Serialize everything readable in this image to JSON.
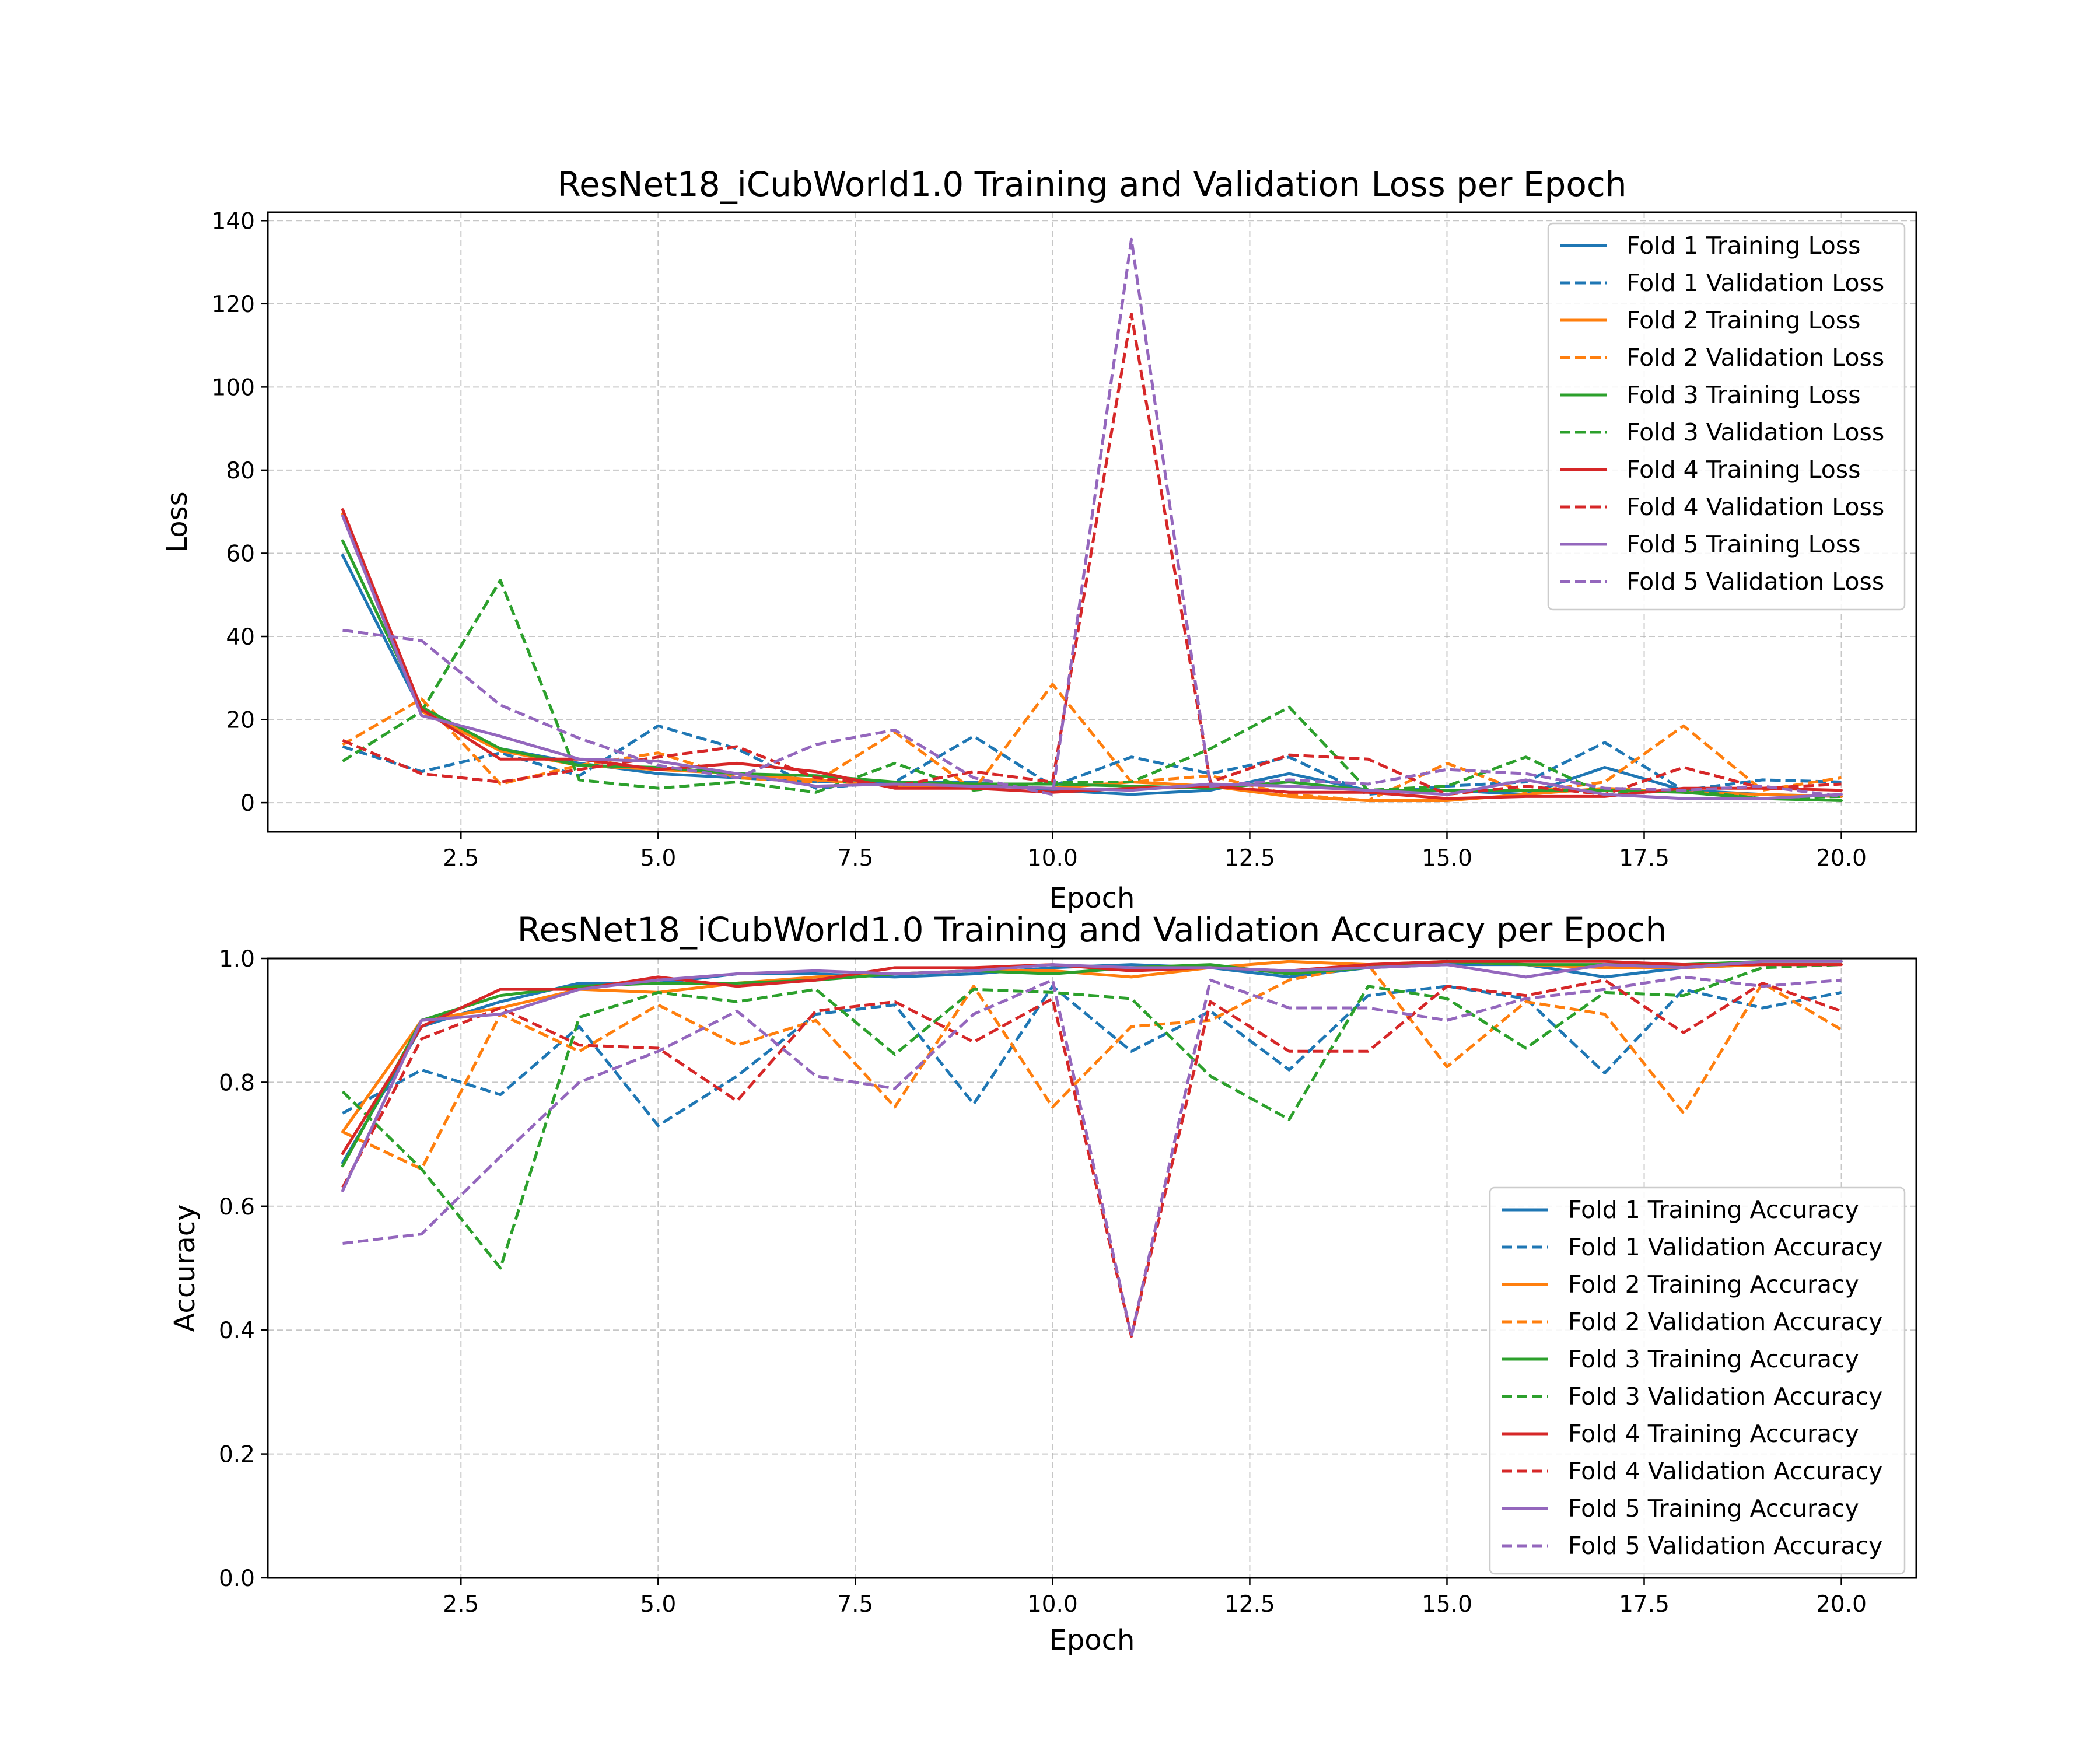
{
  "chart_data": [
    {
      "type": "line",
      "title": "ResNet18_iCubWorld1.0 Training and Validation Loss per Epoch",
      "xlabel": "Epoch",
      "ylabel": "Loss",
      "xlim": [
        0.05,
        20.95
      ],
      "ylim": [
        -7,
        142
      ],
      "xticks": [
        2.5,
        5.0,
        7.5,
        10.0,
        12.5,
        15.0,
        17.5,
        20.0
      ],
      "xtick_labels": [
        "2.5",
        "5.0",
        "7.5",
        "10.0",
        "12.5",
        "15.0",
        "17.5",
        "20.0"
      ],
      "yticks": [
        0,
        20,
        40,
        60,
        80,
        100,
        120,
        140
      ],
      "ytick_labels": [
        "0",
        "20",
        "40",
        "60",
        "80",
        "100",
        "120",
        "140"
      ],
      "grid": true,
      "legend_position": "upper right",
      "x": [
        1,
        2,
        3,
        4,
        5,
        6,
        7,
        8,
        9,
        10,
        11,
        12,
        13,
        14,
        15,
        16,
        17,
        18,
        19,
        20
      ],
      "series": [
        {
          "name": "Fold 1 Training Loss",
          "color": "#1f77b4",
          "style": "solid",
          "values": [
            59.5,
            22,
            13,
            9.5,
            7,
            6,
            5,
            5,
            5,
            3,
            2,
            3,
            7,
            3,
            3,
            2,
            8.5,
            3,
            2,
            1.5
          ]
        },
        {
          "name": "Fold 1 Validation Loss",
          "color": "#1f77b4",
          "style": "dashed",
          "values": [
            13.5,
            7.5,
            12,
            6.5,
            18.5,
            13,
            3.5,
            5,
            16,
            4,
            11,
            7,
            11,
            2,
            4,
            5,
            14.5,
            3,
            5.5,
            5
          ]
        },
        {
          "name": "Fold 2 Training Loss",
          "color": "#ff7f0e",
          "style": "solid",
          "values": [
            69.5,
            22,
            12.5,
            9,
            8,
            7,
            5.5,
            4,
            4,
            3.5,
            5,
            4,
            1.5,
            0.5,
            0.5,
            2,
            3.5,
            2.5,
            2,
            1.5
          ]
        },
        {
          "name": "Fold 2 Validation Loss",
          "color": "#ff7f0e",
          "style": "dashed",
          "values": [
            14,
            25,
            4.5,
            9,
            12,
            6,
            5,
            17,
            3,
            28.5,
            5,
            6.5,
            2,
            0.5,
            9.5,
            2.5,
            5,
            18.5,
            3,
            6
          ]
        },
        {
          "name": "Fold 3 Training Loss",
          "color": "#2ca02c",
          "style": "solid",
          "values": [
            63,
            23,
            13,
            9,
            8.5,
            7,
            6.5,
            5,
            4.5,
            4.5,
            4,
            3.5,
            5,
            3,
            3,
            3,
            3,
            2.5,
            1,
            0.5
          ]
        },
        {
          "name": "Fold 3 Validation Loss",
          "color": "#2ca02c",
          "style": "dashed",
          "values": [
            10,
            22,
            53.5,
            5.5,
            3.5,
            5,
            2.5,
            9.5,
            3,
            5,
            5,
            13,
            23,
            3,
            4,
            11,
            2,
            3,
            1,
            1.5
          ]
        },
        {
          "name": "Fold 4 Training Loss",
          "color": "#d62728",
          "style": "solid",
          "values": [
            70.5,
            22.5,
            10.5,
            10.5,
            8,
            9.5,
            7.5,
            3.5,
            3.5,
            2.5,
            3.5,
            4,
            2.5,
            2.5,
            1,
            1.5,
            1.5,
            3.5,
            3.5,
            3
          ]
        },
        {
          "name": "Fold 4 Validation Loss",
          "color": "#d62728",
          "style": "dashed",
          "values": [
            15,
            7,
            5,
            8,
            11,
            13.5,
            6,
            4,
            7.5,
            5,
            117.5,
            5,
            11.5,
            10.5,
            2,
            4,
            2,
            8.5,
            3.5,
            4.5
          ]
        },
        {
          "name": "Fold 5 Training Loss",
          "color": "#9467bd",
          "style": "solid",
          "values": [
            69,
            21,
            16,
            10.5,
            10,
            7,
            4,
            4.5,
            4,
            3.5,
            3,
            4.5,
            4,
            3,
            2,
            5.5,
            2,
            1,
            1,
            2
          ]
        },
        {
          "name": "Fold 5 Validation Loss",
          "color": "#9467bd",
          "style": "dashed",
          "values": [
            41.5,
            39,
            23.5,
            15.5,
            9,
            6,
            14,
            17.5,
            6,
            2,
            135.5,
            4,
            5.5,
            4.5,
            8,
            7,
            3.5,
            3,
            4,
            1.5
          ]
        }
      ]
    },
    {
      "type": "line",
      "title": "ResNet18_iCubWorld1.0 Training and Validation Accuracy per Epoch",
      "xlabel": "Epoch",
      "ylabel": "Accuracy",
      "xlim": [
        0.05,
        20.95
      ],
      "ylim": [
        0.0,
        1.0
      ],
      "xticks": [
        2.5,
        5.0,
        7.5,
        10.0,
        12.5,
        15.0,
        17.5,
        20.0
      ],
      "xtick_labels": [
        "2.5",
        "5.0",
        "7.5",
        "10.0",
        "12.5",
        "15.0",
        "17.5",
        "20.0"
      ],
      "yticks": [
        0.0,
        0.2,
        0.4,
        0.6,
        0.8,
        1.0
      ],
      "ytick_labels": [
        "0.0",
        "0.2",
        "0.4",
        "0.6",
        "0.8",
        "1.0"
      ],
      "grid": true,
      "legend_position": "lower right",
      "x": [
        1,
        2,
        3,
        4,
        5,
        6,
        7,
        8,
        9,
        10,
        11,
        12,
        13,
        14,
        15,
        16,
        17,
        18,
        19,
        20
      ],
      "series": [
        {
          "name": "Fold 1 Training Accuracy",
          "color": "#1f77b4",
          "style": "solid",
          "values": [
            0.67,
            0.89,
            0.93,
            0.96,
            0.96,
            0.975,
            0.975,
            0.97,
            0.975,
            0.985,
            0.99,
            0.985,
            0.97,
            0.985,
            0.99,
            0.99,
            0.97,
            0.985,
            0.99,
            0.99
          ]
        },
        {
          "name": "Fold 1 Validation Accuracy",
          "color": "#1f77b4",
          "style": "dashed",
          "values": [
            0.75,
            0.82,
            0.78,
            0.89,
            0.73,
            0.81,
            0.91,
            0.925,
            0.765,
            0.955,
            0.85,
            0.915,
            0.82,
            0.94,
            0.955,
            0.935,
            0.815,
            0.95,
            0.92,
            0.945
          ]
        },
        {
          "name": "Fold 2 Training Accuracy",
          "color": "#ff7f0e",
          "style": "solid",
          "values": [
            0.72,
            0.9,
            0.92,
            0.95,
            0.945,
            0.96,
            0.97,
            0.975,
            0.98,
            0.98,
            0.97,
            0.985,
            0.995,
            0.99,
            0.995,
            0.99,
            0.985,
            0.985,
            0.99,
            0.99
          ]
        },
        {
          "name": "Fold 2 Validation Accuracy",
          "color": "#ff7f0e",
          "style": "dashed",
          "values": [
            0.72,
            0.66,
            0.91,
            0.85,
            0.925,
            0.86,
            0.9,
            0.76,
            0.955,
            0.76,
            0.89,
            0.9,
            0.965,
            0.99,
            0.825,
            0.93,
            0.91,
            0.75,
            0.96,
            0.885
          ]
        },
        {
          "name": "Fold 3 Training Accuracy",
          "color": "#2ca02c",
          "style": "solid",
          "values": [
            0.665,
            0.9,
            0.94,
            0.955,
            0.96,
            0.96,
            0.965,
            0.975,
            0.98,
            0.975,
            0.985,
            0.99,
            0.975,
            0.985,
            0.995,
            0.99,
            0.99,
            0.99,
            0.995,
            0.995
          ]
        },
        {
          "name": "Fold 3 Validation Accuracy",
          "color": "#2ca02c",
          "style": "dashed",
          "values": [
            0.785,
            0.66,
            0.5,
            0.905,
            0.945,
            0.93,
            0.95,
            0.845,
            0.95,
            0.945,
            0.935,
            0.81,
            0.74,
            0.955,
            0.935,
            0.855,
            0.945,
            0.94,
            0.985,
            0.99
          ]
        },
        {
          "name": "Fold 4 Training Accuracy",
          "color": "#d62728",
          "style": "solid",
          "values": [
            0.685,
            0.89,
            0.95,
            0.95,
            0.97,
            0.955,
            0.965,
            0.985,
            0.985,
            0.99,
            0.98,
            0.985,
            0.98,
            0.99,
            0.995,
            0.995,
            0.995,
            0.99,
            0.99,
            0.99
          ]
        },
        {
          "name": "Fold 4 Validation Accuracy",
          "color": "#d62728",
          "style": "dashed",
          "values": [
            0.63,
            0.87,
            0.92,
            0.86,
            0.855,
            0.77,
            0.915,
            0.93,
            0.865,
            0.935,
            0.39,
            0.93,
            0.85,
            0.85,
            0.955,
            0.94,
            0.965,
            0.88,
            0.96,
            0.915
          ]
        },
        {
          "name": "Fold 5 Training Accuracy",
          "color": "#9467bd",
          "style": "solid",
          "values": [
            0.625,
            0.9,
            0.91,
            0.95,
            0.965,
            0.975,
            0.98,
            0.975,
            0.98,
            0.99,
            0.985,
            0.985,
            0.98,
            0.985,
            0.99,
            0.97,
            0.99,
            0.985,
            0.995,
            0.995
          ]
        },
        {
          "name": "Fold 5 Validation Accuracy",
          "color": "#9467bd",
          "style": "dashed",
          "values": [
            0.54,
            0.555,
            0.68,
            0.8,
            0.85,
            0.915,
            0.81,
            0.79,
            0.91,
            0.965,
            0.39,
            0.965,
            0.92,
            0.92,
            0.9,
            0.935,
            0.95,
            0.97,
            0.955,
            0.965
          ]
        }
      ]
    }
  ]
}
